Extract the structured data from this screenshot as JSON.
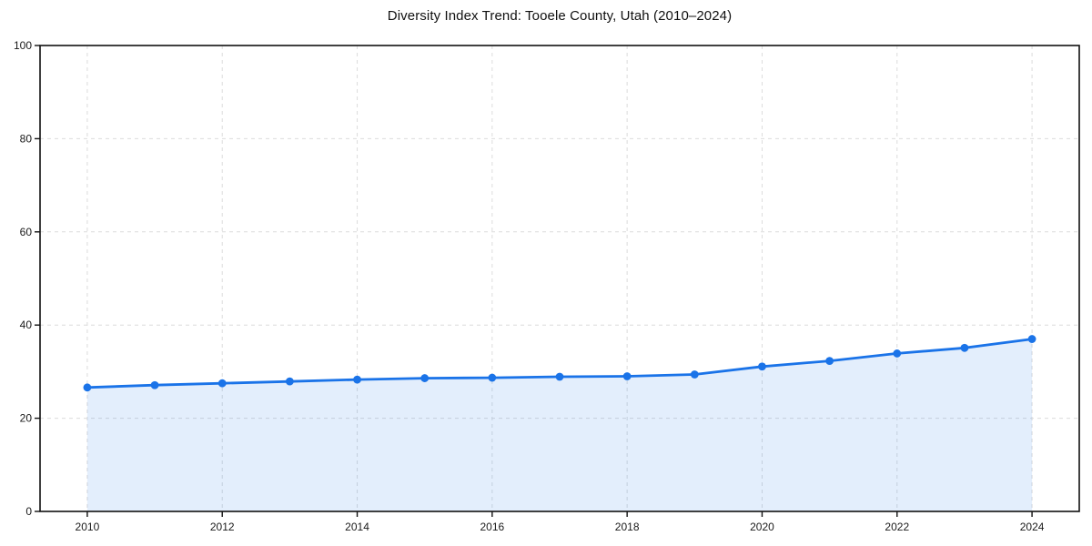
{
  "page": {
    "background": "#ffffff"
  },
  "chart_data": {
    "type": "area",
    "title": "Diversity Index Trend: Tooele County, Utah (2010–2024)",
    "x": [
      2010,
      2011,
      2012,
      2013,
      2014,
      2015,
      2016,
      2017,
      2018,
      2019,
      2020,
      2021,
      2022,
      2023,
      2024
    ],
    "series": [
      {
        "name": "Diversity Index",
        "values": [
          26.6,
          27.1,
          27.5,
          27.9,
          28.3,
          28.6,
          28.7,
          28.9,
          29.0,
          29.4,
          31.1,
          32.3,
          33.9,
          35.1,
          37.0
        ]
      }
    ],
    "xlabel": "",
    "ylabel": "",
    "xlim": [
      2009.3,
      2024.7
    ],
    "ylim": [
      0,
      100
    ],
    "xticks": [
      2010,
      2012,
      2014,
      2016,
      2018,
      2020,
      2022,
      2024
    ],
    "yticks": [
      0,
      20,
      40,
      60,
      80,
      100
    ],
    "grid": true,
    "grid_style": "dashed",
    "legend": "none",
    "marker": "circle",
    "colors": {
      "line": "#1a73e8",
      "marker": "#1a73e8",
      "fill": "rgba(26,115,232,0.12)",
      "grid": "#dcdcdc",
      "axis": "#111111",
      "tick_label": "#1a1a1a",
      "title": "#111111"
    }
  }
}
